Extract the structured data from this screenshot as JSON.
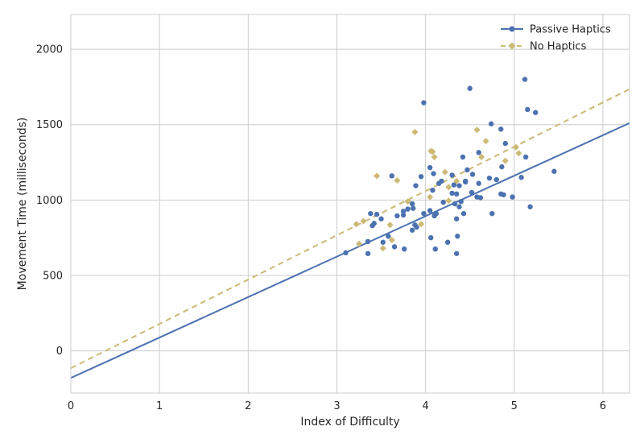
{
  "chart_data": {
    "type": "scatter",
    "xlabel": "Index of Difficulty",
    "ylabel": "Movement Time (milliseconds)",
    "xlim": [
      0,
      6.3
    ],
    "ylim": [
      -280,
      2230
    ],
    "x_ticks": [
      0,
      1,
      2,
      3,
      4,
      5,
      6
    ],
    "y_ticks": [
      0,
      500,
      1000,
      1500,
      2000
    ],
    "grid": true,
    "legend_position": "top-right",
    "series": [
      {
        "name": "Passive Haptics",
        "color": "#4c72b0",
        "marker": "circle",
        "line_style": "solid",
        "fit": {
          "intercept": -180,
          "slope": 268.25
        },
        "points": [
          [
            3.1,
            650
          ],
          [
            3.35,
            645
          ],
          [
            3.35,
            725
          ],
          [
            3.38,
            910
          ],
          [
            3.4,
            830
          ],
          [
            3.42,
            845
          ],
          [
            3.45,
            905
          ],
          [
            3.5,
            875
          ],
          [
            3.52,
            720
          ],
          [
            3.58,
            760
          ],
          [
            3.62,
            1160
          ],
          [
            3.65,
            690
          ],
          [
            3.68,
            895
          ],
          [
            3.75,
            900
          ],
          [
            3.75,
            925
          ],
          [
            3.76,
            675
          ],
          [
            3.8,
            940
          ],
          [
            3.85,
            975
          ],
          [
            3.85,
            800
          ],
          [
            3.86,
            945
          ],
          [
            3.88,
            835
          ],
          [
            3.89,
            1095
          ],
          [
            3.9,
            820
          ],
          [
            3.95,
            1155
          ],
          [
            3.98,
            910
          ],
          [
            3.98,
            1645
          ],
          [
            4.05,
            1215
          ],
          [
            4.05,
            930
          ],
          [
            4.06,
            750
          ],
          [
            4.08,
            1065
          ],
          [
            4.09,
            1175
          ],
          [
            4.1,
            895
          ],
          [
            4.11,
            675
          ],
          [
            4.12,
            910
          ],
          [
            4.15,
            1110
          ],
          [
            4.18,
            1125
          ],
          [
            4.2,
            985
          ],
          [
            4.25,
            720
          ],
          [
            4.3,
            1165
          ],
          [
            4.3,
            1045
          ],
          [
            4.32,
            1100
          ],
          [
            4.33,
            975
          ],
          [
            4.35,
            1040
          ],
          [
            4.35,
            645
          ],
          [
            4.35,
            875
          ],
          [
            4.36,
            760
          ],
          [
            4.38,
            1095
          ],
          [
            4.38,
            955
          ],
          [
            4.4,
            990
          ],
          [
            4.42,
            1285
          ],
          [
            4.43,
            910
          ],
          [
            4.45,
            1125
          ],
          [
            4.45,
            1120
          ],
          [
            4.47,
            1200
          ],
          [
            4.5,
            1740
          ],
          [
            4.52,
            1050
          ],
          [
            4.53,
            1170
          ],
          [
            4.58,
            1020
          ],
          [
            4.6,
            1110
          ],
          [
            4.6,
            1315
          ],
          [
            4.62,
            1015
          ],
          [
            4.72,
            1145
          ],
          [
            4.74,
            1505
          ],
          [
            4.75,
            910
          ],
          [
            4.8,
            1135
          ],
          [
            4.85,
            1040
          ],
          [
            4.85,
            1470
          ],
          [
            4.86,
            1220
          ],
          [
            4.88,
            1035
          ],
          [
            4.9,
            1375
          ],
          [
            4.98,
            1020
          ],
          [
            5.08,
            1150
          ],
          [
            5.12,
            1800
          ],
          [
            5.13,
            1285
          ],
          [
            5.15,
            1600
          ],
          [
            5.18,
            955
          ],
          [
            5.24,
            1580
          ],
          [
            5.45,
            1190
          ]
        ]
      },
      {
        "name": "No Haptics",
        "color": "#ccb974",
        "marker": "diamond",
        "line_style": "dashed",
        "fit": {
          "intercept": -115,
          "slope": 293.65
        },
        "points": [
          [
            3.22,
            840
          ],
          [
            3.25,
            710
          ],
          [
            3.3,
            860
          ],
          [
            3.45,
            1160
          ],
          [
            3.52,
            680
          ],
          [
            3.6,
            835
          ],
          [
            3.62,
            735
          ],
          [
            3.68,
            1130
          ],
          [
            3.8,
            990
          ],
          [
            3.88,
            1450
          ],
          [
            3.95,
            840
          ],
          [
            4.05,
            1020
          ],
          [
            4.06,
            1325
          ],
          [
            4.08,
            1320
          ],
          [
            4.1,
            1285
          ],
          [
            4.22,
            1185
          ],
          [
            4.26,
            1085
          ],
          [
            4.26,
            995
          ],
          [
            4.35,
            1125
          ],
          [
            4.58,
            1465
          ],
          [
            4.63,
            1285
          ],
          [
            4.68,
            1390
          ],
          [
            4.9,
            1260
          ],
          [
            5.02,
            1350
          ],
          [
            5.05,
            1310
          ]
        ]
      }
    ]
  }
}
